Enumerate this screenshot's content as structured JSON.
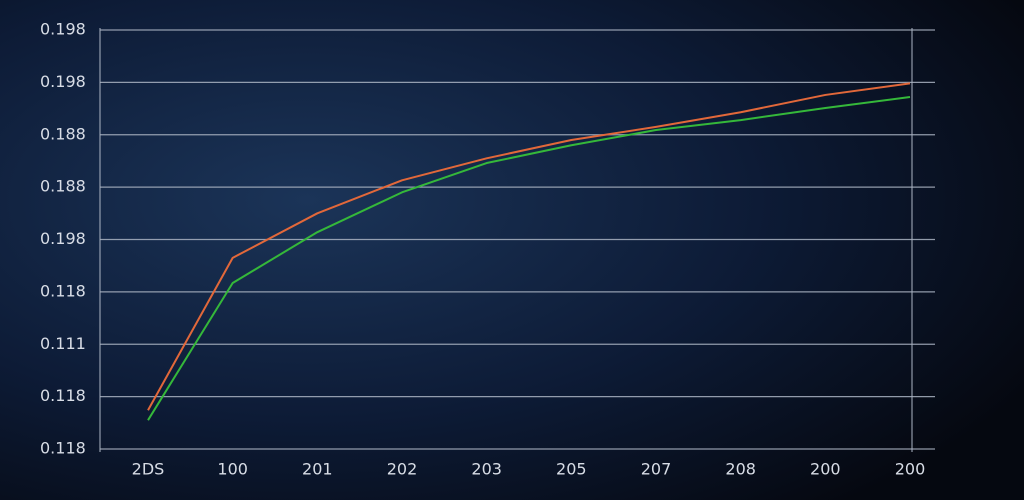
{
  "chart_data": {
    "type": "line",
    "categories": [
      "2DS",
      "100",
      "201",
      "202",
      "203",
      "205",
      "207",
      "208",
      "200",
      "200"
    ],
    "series": [
      {
        "color": "#e2683a",
        "values": [
          0.74,
          3.65,
          4.5,
          5.13,
          5.55,
          5.9,
          6.15,
          6.43,
          6.76,
          6.98
        ]
      },
      {
        "color": "#35b83a",
        "values": [
          0.55,
          3.17,
          4.14,
          4.9,
          5.46,
          5.8,
          6.09,
          6.28,
          6.51,
          6.72
        ]
      }
    ],
    "ylim": [
      0,
      8
    ],
    "yticks": [
      {
        "value": 0,
        "label": "0.118"
      },
      {
        "value": 1,
        "label": "0.118"
      },
      {
        "value": 2,
        "label": "0.111"
      },
      {
        "value": 3,
        "label": "0.118"
      },
      {
        "value": 4,
        "label": "0.198"
      },
      {
        "value": 5,
        "label": "0.188"
      },
      {
        "value": 6,
        "label": "0.188"
      },
      {
        "value": 7,
        "label": "0.198"
      },
      {
        "value": 8,
        "label": "0.198"
      }
    ],
    "grid": true
  }
}
